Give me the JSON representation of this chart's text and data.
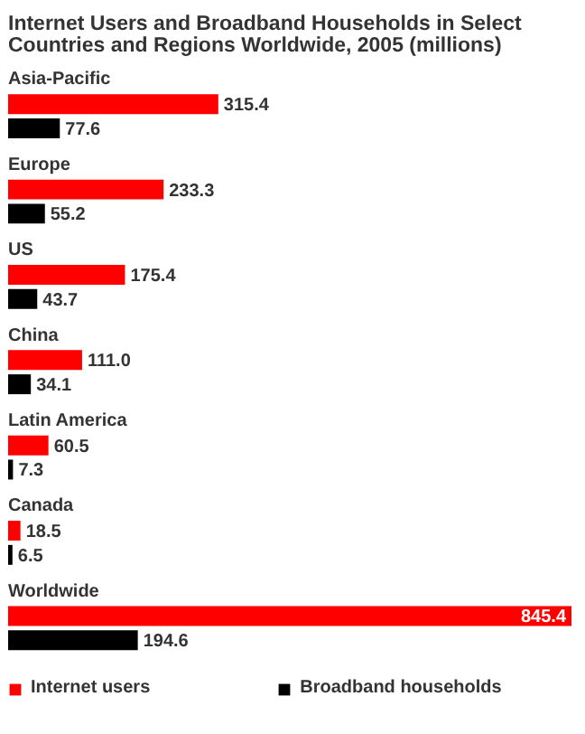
{
  "chart_data": {
    "type": "bar",
    "orientation": "horizontal",
    "title": "Internet Users and Broadband Households in Select Countries and Regions Worldwide, 2005 (millions)",
    "categories": [
      "Asia-Pacific",
      "Europe",
      "US",
      "China",
      "Latin America",
      "Canada",
      "Worldwide"
    ],
    "series": [
      {
        "name": "Internet users",
        "color": "#ff0000",
        "values": [
          315.4,
          233.3,
          175.4,
          111.0,
          60.5,
          18.5,
          845.4
        ],
        "value_labels": [
          "315.4",
          "233.3",
          "175.4",
          "111.0",
          "60.5",
          "18.5",
          "845.4"
        ]
      },
      {
        "name": "Broadband households",
        "color": "#000000",
        "values": [
          77.6,
          55.2,
          43.7,
          34.1,
          7.3,
          6.5,
          194.6
        ],
        "value_labels": [
          "77.6",
          "55.2",
          "43.7",
          "34.1",
          "7.3",
          "6.5",
          "194.6"
        ]
      }
    ],
    "legend": "bottom"
  }
}
